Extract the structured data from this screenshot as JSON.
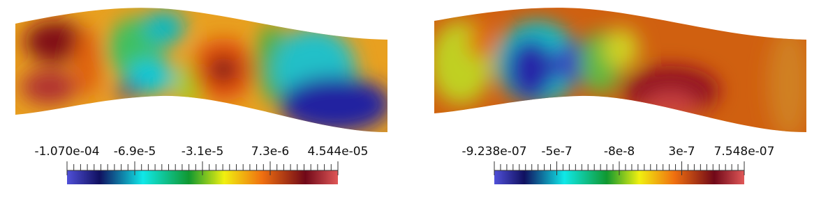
{
  "panels": [
    {
      "colorbar": {
        "ticks": [
          "-1.070e-04",
          "-6.9e-5",
          "-3.1e-5",
          "7.3e-6",
          "4.544e-05"
        ]
      }
    },
    {
      "colorbar": {
        "ticks": [
          "-9.238e-07",
          "-5e-7",
          "-8e-8",
          "3e-7",
          "7.548e-07"
        ]
      }
    }
  ]
}
